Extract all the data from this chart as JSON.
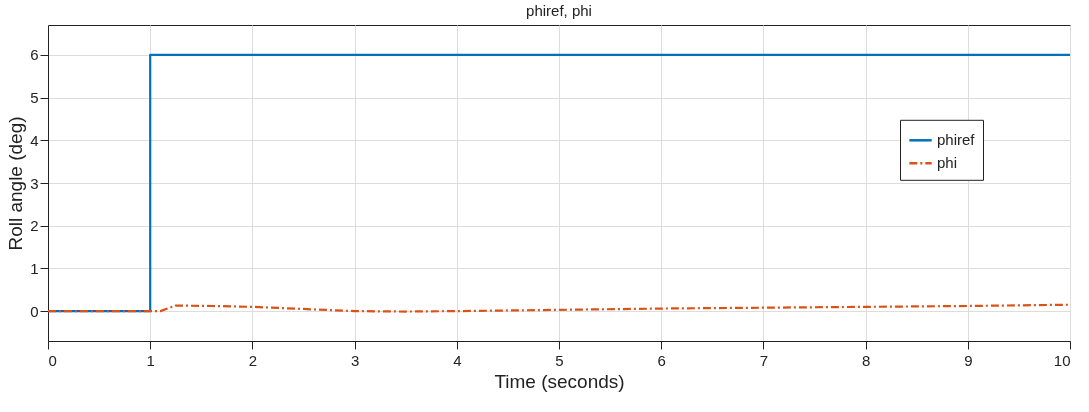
{
  "chart_data": {
    "type": "line",
    "title": "phiref, phi",
    "xlabel": "Time (seconds)",
    "ylabel": "Roll angle (deg)",
    "xlim": [
      0,
      10
    ],
    "xticks": [
      0,
      1,
      2,
      3,
      4,
      5,
      6,
      7,
      8,
      9,
      10
    ],
    "ylim": [
      -0.7,
      6.7
    ],
    "yticks": [
      0,
      1,
      2,
      3,
      4,
      5,
      6
    ],
    "grid": true,
    "legend": "right",
    "marker": "none",
    "series": [
      {
        "name": "phiref",
        "type": "step",
        "color": "#0072bd",
        "line_style": "solid",
        "x": [
          0,
          1,
          10
        ],
        "values": [
          0,
          6,
          6
        ]
      },
      {
        "name": "phi",
        "type": "line",
        "color": "#d95319",
        "line_style": "dashed",
        "x": [
          0,
          1,
          1.1,
          1.25,
          1.6,
          2,
          2.5,
          3,
          3.5,
          4,
          5,
          6,
          7,
          8,
          9,
          10
        ],
        "values": [
          0,
          0,
          0,
          0.13,
          0.12,
          0.1,
          0.05,
          0,
          -0.01,
          0,
          0.03,
          0.06,
          0.08,
          0.1,
          0.12,
          0.15
        ]
      }
    ]
  }
}
